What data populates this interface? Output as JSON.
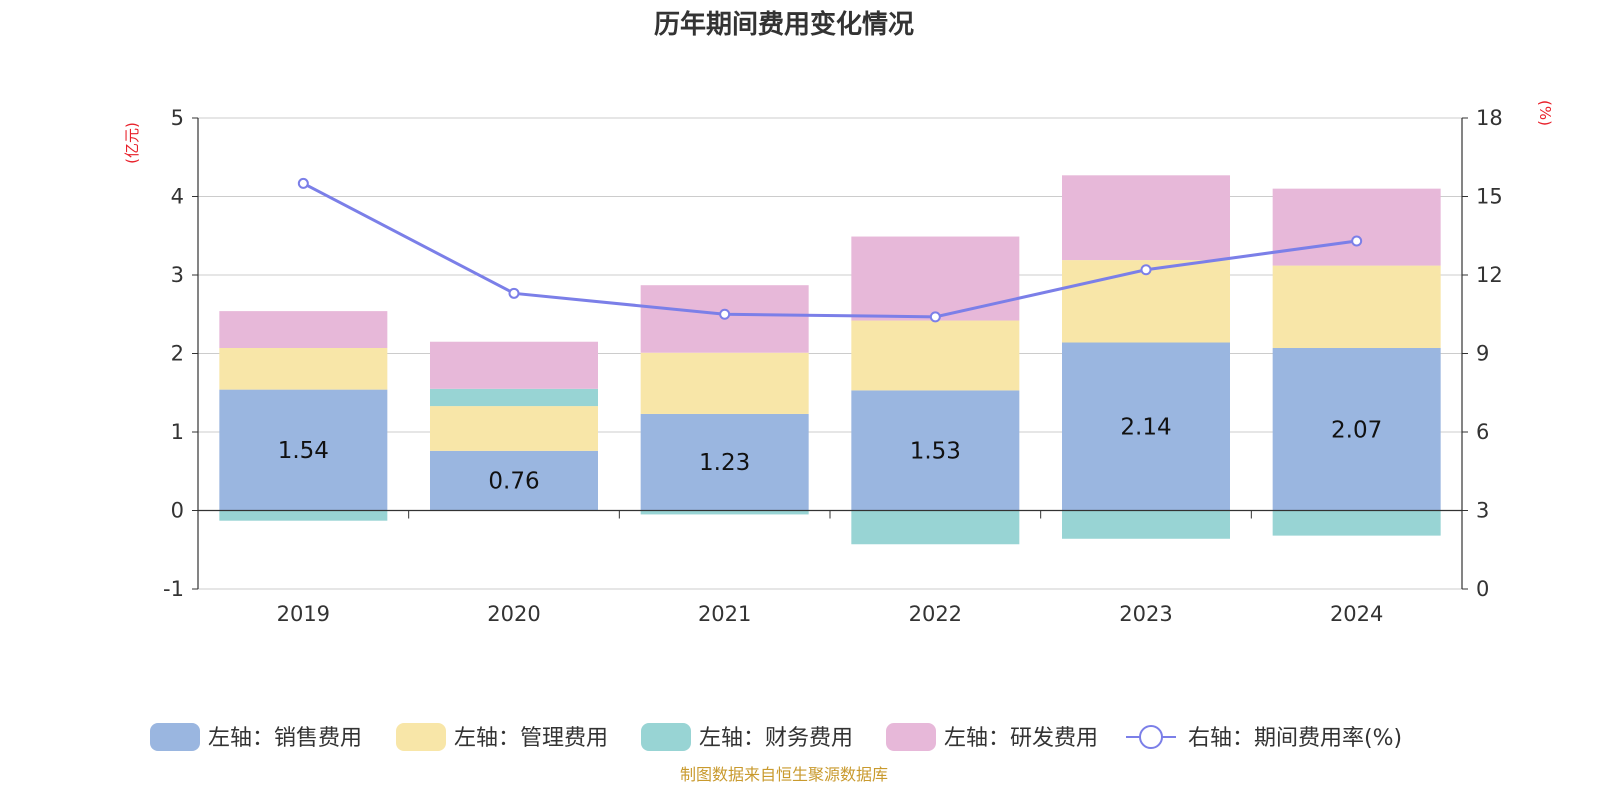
{
  "chart_data": {
    "type": "bar",
    "title": "历年期间费用变化情况",
    "categories": [
      "2019",
      "2020",
      "2021",
      "2022",
      "2023",
      "2024"
    ],
    "left_axis": {
      "unit": "(亿元)",
      "ylim": [
        -1,
        5
      ],
      "ticks": [
        "5",
        "4",
        "3",
        "2",
        "1",
        "0",
        "-1"
      ]
    },
    "right_axis": {
      "unit": "(%)",
      "ylim": [
        0,
        18
      ],
      "ticks": [
        "18",
        "15",
        "12",
        "9",
        "6",
        "3",
        "0"
      ]
    },
    "grid": true,
    "legend_position": "bottom",
    "series": [
      {
        "name": "左轴：销售费用",
        "type": "bar",
        "axis": "left",
        "color": "#9ab6e0",
        "values": [
          1.54,
          0.76,
          1.23,
          1.53,
          2.14,
          2.07
        ],
        "labels": [
          "1.54",
          "0.76",
          "1.23",
          "1.53",
          "2.14",
          "2.07"
        ]
      },
      {
        "name": "左轴：管理费用",
        "type": "bar",
        "axis": "left",
        "color": "#f8e6a8",
        "values": [
          0.53,
          0.57,
          0.78,
          0.89,
          1.05,
          1.05
        ]
      },
      {
        "name": "左轴：财务费用",
        "type": "bar",
        "axis": "left",
        "color": "#98d4d4",
        "values": [
          -0.13,
          0.22,
          -0.05,
          -0.43,
          -0.36,
          -0.32
        ]
      },
      {
        "name": "左轴：研发费用",
        "type": "bar",
        "axis": "left",
        "color": "#e7b8d9",
        "values": [
          0.47,
          0.6,
          0.86,
          1.07,
          1.08,
          0.98
        ]
      },
      {
        "name": "右轴：期间费用率(%)",
        "type": "line",
        "axis": "right",
        "color": "#7b7fe8",
        "values": [
          15.5,
          11.3,
          10.5,
          10.4,
          12.2,
          13.3
        ]
      }
    ]
  },
  "source": "制图数据来自恒生聚源数据库"
}
